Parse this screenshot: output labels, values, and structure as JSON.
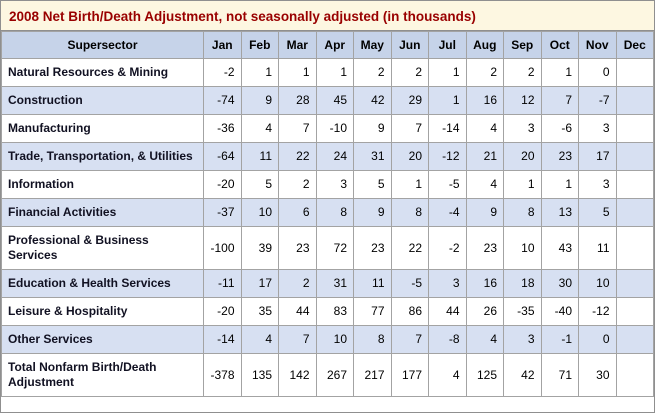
{
  "title": "2008 Net Birth/Death Adjustment, not seasonally adjusted (in thousands)",
  "colors": {
    "title_bg": "#fdf7e1",
    "title_text": "#990000",
    "header_bg": "#c6d3e9",
    "row_alt_bg": "#d7e0f2",
    "border": "#a3a3a3"
  },
  "chart_data": {
    "type": "table",
    "title": "2008 Net Birth/Death Adjustment, not seasonally adjusted (in thousands)",
    "units": "thousands",
    "columns": [
      "Supersector",
      "Jan",
      "Feb",
      "Mar",
      "Apr",
      "May",
      "Jun",
      "Jul",
      "Aug",
      "Sep",
      "Oct",
      "Nov",
      "Dec"
    ],
    "rows": [
      {
        "label": "Natural Resources & Mining",
        "values": [
          -2,
          1,
          1,
          1,
          2,
          2,
          1,
          2,
          2,
          1,
          0,
          null
        ]
      },
      {
        "label": "Construction",
        "values": [
          -74,
          9,
          28,
          45,
          42,
          29,
          1,
          16,
          12,
          7,
          -7,
          null
        ]
      },
      {
        "label": "Manufacturing",
        "values": [
          -36,
          4,
          7,
          -10,
          9,
          7,
          -14,
          4,
          3,
          -6,
          3,
          null
        ]
      },
      {
        "label": "Trade, Transportation, & Utilities",
        "values": [
          -64,
          11,
          22,
          24,
          31,
          20,
          -12,
          21,
          20,
          23,
          17,
          null
        ]
      },
      {
        "label": "Information",
        "values": [
          -20,
          5,
          2,
          3,
          5,
          1,
          -5,
          4,
          1,
          1,
          3,
          null
        ]
      },
      {
        "label": "Financial Activities",
        "values": [
          -37,
          10,
          6,
          8,
          9,
          8,
          -4,
          9,
          8,
          13,
          5,
          null
        ]
      },
      {
        "label": "Professional & Business Services",
        "values": [
          -100,
          39,
          23,
          72,
          23,
          22,
          -2,
          23,
          10,
          43,
          11,
          null
        ]
      },
      {
        "label": "Education & Health Services",
        "values": [
          -11,
          17,
          2,
          31,
          11,
          -5,
          3,
          16,
          18,
          30,
          10,
          null
        ]
      },
      {
        "label": "Leisure & Hospitality",
        "values": [
          -20,
          35,
          44,
          83,
          77,
          86,
          44,
          26,
          -35,
          -40,
          -12,
          null
        ]
      },
      {
        "label": "Other Services",
        "values": [
          -14,
          4,
          7,
          10,
          8,
          7,
          -8,
          4,
          3,
          -1,
          0,
          null
        ]
      },
      {
        "label": "Total Nonfarm Birth/Death Adjustment",
        "values": [
          -378,
          135,
          142,
          267,
          217,
          177,
          4,
          125,
          42,
          71,
          30,
          null
        ]
      }
    ]
  }
}
